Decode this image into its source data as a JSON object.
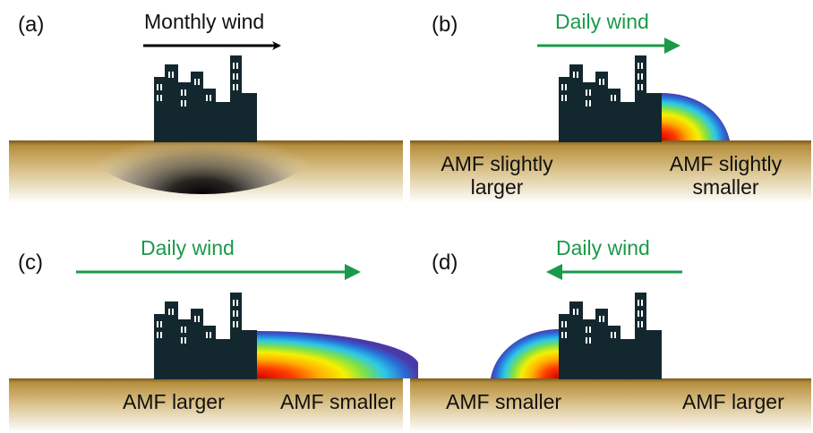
{
  "colors": {
    "ground_top": "#7a5a1c",
    "ground_mid": "#caa85a",
    "ground_bottom": "#ffffff",
    "building": "#13282e",
    "window": "#ffffff",
    "monthly_arrow": "#000000",
    "daily_arrow": "#1a9a4a"
  },
  "panels": {
    "a": {
      "label": "(a)",
      "wind": "Monthly wind"
    },
    "b": {
      "label": "(b)",
      "wind": "Daily wind",
      "left_note": "AMF slightly\nlarger",
      "right_note": "AMF slightly\nsmaller"
    },
    "c": {
      "label": "(c)",
      "wind": "Daily wind",
      "left_note": "AMF larger",
      "right_note": "AMF smaller"
    },
    "d": {
      "label": "(d)",
      "wind": "Daily wind",
      "left_note": "AMF smaller",
      "right_note": "AMF larger"
    }
  },
  "icons": {
    "city": "city-buildings-icon",
    "plume": "pollution-plume-icon",
    "arrow": "wind-arrow-icon"
  }
}
